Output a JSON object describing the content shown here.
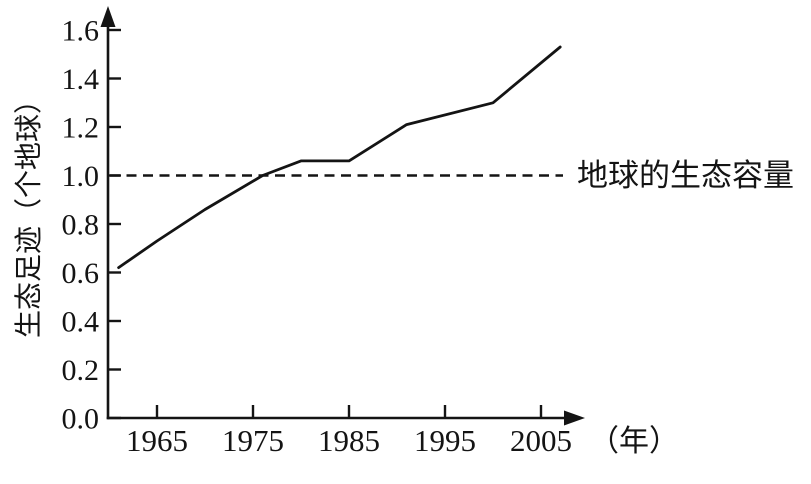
{
  "chart_data": {
    "type": "line",
    "title": "",
    "ylabel": "生态足迹（个地球）",
    "x_unit_label": "（年）",
    "y_ticks": [
      "0.0",
      "0.2",
      "0.4",
      "0.6",
      "0.8",
      "1.0",
      "1.2",
      "1.4",
      "1.6"
    ],
    "x_ticks": [
      "1965",
      "1975",
      "1985",
      "1995",
      "2005"
    ],
    "xlim": [
      1960,
      2009
    ],
    "ylim": [
      0.0,
      1.7
    ],
    "grid": false,
    "legend": "none",
    "line_color": "#141414",
    "background_color": "#ffffff",
    "series": [
      {
        "name": "生态足迹",
        "points": [
          [
            1961,
            0.62
          ],
          [
            1965,
            0.73
          ],
          [
            1970,
            0.86
          ],
          [
            1976,
            1.0
          ],
          [
            1980,
            1.06
          ],
          [
            1985,
            1.06
          ],
          [
            1991,
            1.21
          ],
          [
            2000,
            1.3
          ],
          [
            2007,
            1.53
          ]
        ]
      }
    ],
    "reference_line": {
      "value": 1.0,
      "label": "地球的生态容量",
      "style": "dashed"
    }
  }
}
